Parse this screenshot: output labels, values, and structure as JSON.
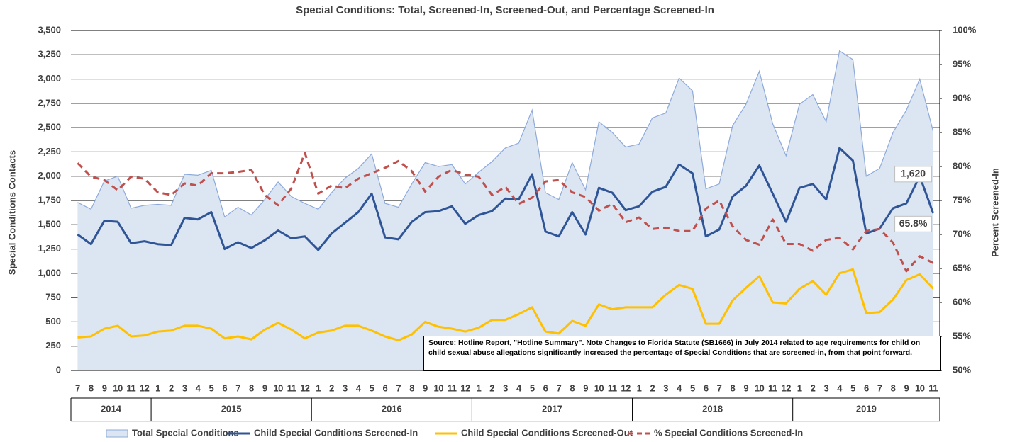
{
  "chart_data": {
    "type": "combo",
    "title": "Special Conditions: Total, Screened-In, Screened-Out, and Percentage Screened-In",
    "ylabel": "Special Conditions Contacts",
    "y2label": "Percent Screened-In",
    "category_groups": [
      {
        "label": "2014",
        "categories": [
          "7",
          "8",
          "9",
          "10",
          "11",
          "12"
        ]
      },
      {
        "label": "2015",
        "categories": [
          "1",
          "2",
          "3",
          "4",
          "5",
          "6",
          "7",
          "8",
          "9",
          "10",
          "11",
          "12"
        ]
      },
      {
        "label": "2016",
        "categories": [
          "1",
          "2",
          "3",
          "4",
          "5",
          "6",
          "7",
          "8",
          "9",
          "10",
          "11",
          "12"
        ]
      },
      {
        "label": "2017",
        "categories": [
          "1",
          "2",
          "3",
          "4",
          "5",
          "6",
          "7",
          "8",
          "9",
          "10",
          "11",
          "12"
        ]
      },
      {
        "label": "2018",
        "categories": [
          "1",
          "2",
          "3",
          "4",
          "5",
          "6",
          "7",
          "8",
          "9",
          "10",
          "11",
          "12"
        ]
      },
      {
        "label": "2019",
        "categories": [
          "1",
          "2",
          "3",
          "4",
          "5",
          "6",
          "7",
          "8",
          "9",
          "10",
          "11"
        ]
      }
    ],
    "ylim": [
      0,
      3500
    ],
    "yticks": [
      0,
      250,
      500,
      750,
      {
        "value": 1000,
        "label": "1,000"
      },
      {
        "value": 1250,
        "label": "1,250"
      },
      {
        "value": 1500,
        "label": "1,500"
      },
      {
        "value": 1750,
        "label": "1,750"
      },
      {
        "value": 2000,
        "label": "2,000"
      },
      {
        "value": 2250,
        "label": "2,250"
      },
      {
        "value": 2500,
        "label": "2,500"
      },
      {
        "value": 2750,
        "label": "2,750"
      },
      {
        "value": 3000,
        "label": "3,000"
      },
      {
        "value": 3250,
        "label": "3,250"
      },
      {
        "value": 3500,
        "label": "3,500"
      }
    ],
    "y2lim": [
      50,
      100
    ],
    "y2ticks": [
      {
        "value": 50,
        "label": "50%"
      },
      {
        "value": 55,
        "label": "55%"
      },
      {
        "value": 60,
        "label": "60%"
      },
      {
        "value": 65,
        "label": "65%"
      },
      {
        "value": 70,
        "label": "70%"
      },
      {
        "value": 75,
        "label": "75%"
      },
      {
        "value": 80,
        "label": "80%"
      },
      {
        "value": 85,
        "label": "85%"
      },
      {
        "value": 90,
        "label": "90%"
      },
      {
        "value": 95,
        "label": "95%"
      },
      {
        "value": 100,
        "label": "100%"
      }
    ],
    "grid": true,
    "legend": "bottom",
    "series": [
      {
        "name": "Total Special Conditions",
        "kind": "area",
        "color": "#dce6f2",
        "edge": "#8eaadb",
        "values": [
          1730,
          1660,
          1950,
          2000,
          1670,
          1700,
          1710,
          1700,
          2020,
          2010,
          2060,
          1580,
          1680,
          1600,
          1760,
          1940,
          1790,
          1720,
          1660,
          1830,
          1980,
          2080,
          2230,
          1720,
          1680,
          1920,
          2140,
          2100,
          2120,
          1920,
          2040,
          2150,
          2290,
          2340,
          2680,
          1830,
          1760,
          2140,
          1860,
          2560,
          2450,
          2300,
          2330,
          2600,
          2650,
          3010,
          2880,
          1870,
          1920,
          2520,
          2740,
          3080,
          2540,
          2210,
          2740,
          2840,
          2560,
          3290,
          3200,
          2000,
          2080,
          2450,
          2680,
          3000,
          2463
        ]
      },
      {
        "name": "Child Special Conditions Screened-In",
        "kind": "line",
        "color": "#2f5597",
        "values": [
          1400,
          1300,
          1540,
          1530,
          1310,
          1330,
          1300,
          1290,
          1570,
          1555,
          1630,
          1250,
          1320,
          1260,
          1340,
          1440,
          1360,
          1380,
          1240,
          1410,
          1520,
          1630,
          1820,
          1370,
          1350,
          1530,
          1630,
          1640,
          1690,
          1510,
          1600,
          1640,
          1770,
          1760,
          2020,
          1430,
          1380,
          1630,
          1400,
          1880,
          1830,
          1650,
          1690,
          1840,
          1890,
          2120,
          2030,
          1380,
          1450,
          1790,
          1900,
          2110,
          1820,
          1530,
          1880,
          1920,
          1760,
          2290,
          2160,
          1410,
          1460,
          1670,
          1720,
          2000,
          1620
        ],
        "value_labels": [
          null,
          null,
          null,
          null,
          null,
          null,
          null,
          null,
          null,
          null,
          null,
          null,
          null,
          null,
          null,
          null,
          null,
          null,
          null,
          null,
          null,
          null,
          null,
          null,
          null,
          null,
          null,
          null,
          null,
          null,
          null,
          null,
          null,
          null,
          null,
          null,
          null,
          null,
          null,
          null,
          null,
          null,
          null,
          null,
          null,
          null,
          null,
          null,
          null,
          null,
          null,
          null,
          null,
          null,
          null,
          null,
          null,
          null,
          null,
          null,
          null,
          null,
          null,
          null,
          "1,620"
        ]
      },
      {
        "name": "Child Special Conditions Screened-Out",
        "kind": "line",
        "color": "#ffc000",
        "values": [
          340,
          350,
          430,
          460,
          350,
          360,
          400,
          410,
          460,
          460,
          430,
          330,
          350,
          320,
          420,
          490,
          420,
          330,
          390,
          410,
          460,
          460,
          410,
          350,
          310,
          370,
          500,
          450,
          430,
          400,
          440,
          520,
          520,
          580,
          650,
          400,
          380,
          510,
          460,
          680,
          630,
          650,
          650,
          650,
          780,
          880,
          840,
          480,
          480,
          720,
          850,
          970,
          700,
          690,
          840,
          920,
          780,
          1000,
          1040,
          590,
          600,
          730,
          930,
          990,
          843
        ]
      },
      {
        "name": "% Special Conditions Screened-In",
        "kind": "dashed",
        "color": "#c0504d",
        "axis": "y2",
        "values": [
          80.5,
          78.5,
          78,
          76.5,
          78.5,
          78.2,
          76.2,
          75.8,
          77.5,
          77.2,
          79,
          79,
          79.2,
          79.5,
          75.8,
          74.3,
          76.8,
          82,
          76,
          77.2,
          76.8,
          78.2,
          79,
          79.8,
          80.8,
          79.3,
          76.3,
          78.5,
          79.5,
          78.8,
          78.5,
          75.8,
          77,
          74.5,
          75.4,
          77.8,
          78,
          76.2,
          75.5,
          73.5,
          74.5,
          71.8,
          72.5,
          70.8,
          71,
          70.5,
          70.5,
          73.8,
          75,
          71.2,
          69.2,
          68.5,
          72.2,
          68.6,
          68.6,
          67.6,
          69.2,
          69.5,
          67.8,
          70.5,
          70.8,
          68.8,
          64.6,
          66.8,
          65.8
        ],
        "value_labels": [
          null,
          null,
          null,
          null,
          null,
          null,
          null,
          null,
          null,
          null,
          null,
          null,
          null,
          null,
          null,
          null,
          null,
          null,
          null,
          null,
          null,
          null,
          null,
          null,
          null,
          null,
          null,
          null,
          null,
          null,
          null,
          null,
          null,
          null,
          null,
          null,
          null,
          null,
          null,
          null,
          null,
          null,
          null,
          null,
          null,
          null,
          null,
          null,
          null,
          null,
          null,
          null,
          null,
          null,
          null,
          null,
          null,
          null,
          null,
          null,
          null,
          null,
          null,
          null,
          "65.8%"
        ]
      }
    ],
    "annotation": "Source: Hotline Report, \"Hotline Summary\". Note Changes to Florida Statute (SB1666) in July 2014 related to age requirements for child on child sexual abuse allegations significantly increased the percentage of Special Conditions that are screened-in, from that point forward."
  }
}
